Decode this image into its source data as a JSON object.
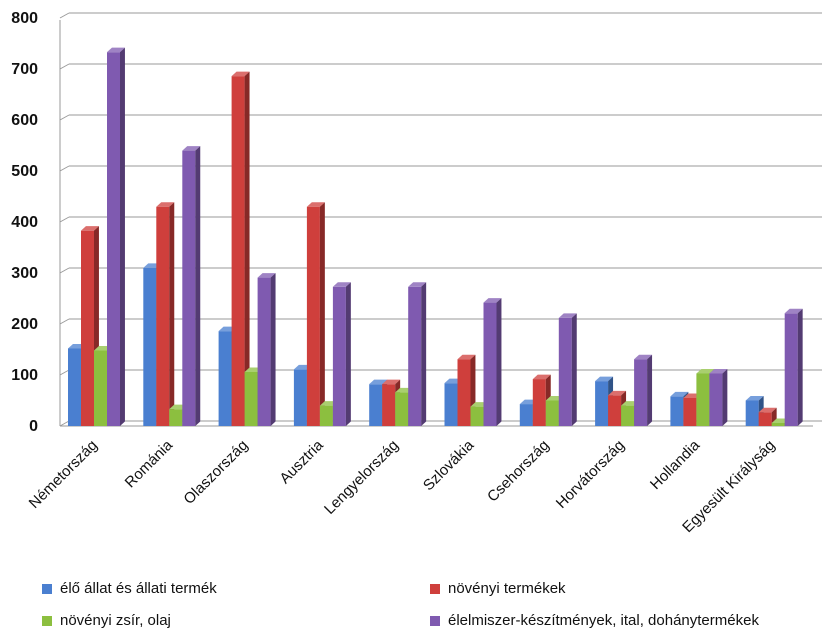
{
  "chart_data": {
    "type": "bar",
    "categories": [
      "Németország",
      "Románia",
      "Olaszország",
      "Ausztria",
      "Lengyelország",
      "Szlovákia",
      "Csehország",
      "Horvátország",
      "Hollandia",
      "Egyesült Királyság"
    ],
    "series": [
      {
        "name": "élő állat és állati termék",
        "color": "#4a7fd0",
        "values": [
          152,
          310,
          186,
          111,
          82,
          84,
          43,
          88,
          58,
          50
        ]
      },
      {
        "name": "növényi termékek",
        "color": "#cf3f3c",
        "values": [
          383,
          430,
          686,
          430,
          82,
          131,
          92,
          60,
          55,
          27
        ]
      },
      {
        "name": "növényi zsír, olaj",
        "color": "#8cbf3f",
        "values": [
          148,
          33,
          106,
          40,
          66,
          38,
          50,
          40,
          103,
          6
        ]
      },
      {
        "name": "élelmiszer-készítmények, ital, dohánytermékek",
        "color": "#7f5ab0",
        "values": [
          733,
          540,
          291,
          273,
          273,
          242,
          212,
          131,
          103,
          221
        ]
      }
    ],
    "ylim": [
      0,
      800
    ],
    "yticks": [
      "0",
      "100",
      "200",
      "300",
      "400",
      "500",
      "600",
      "700",
      "800"
    ],
    "grid": true,
    "legend_position": "bottom"
  }
}
